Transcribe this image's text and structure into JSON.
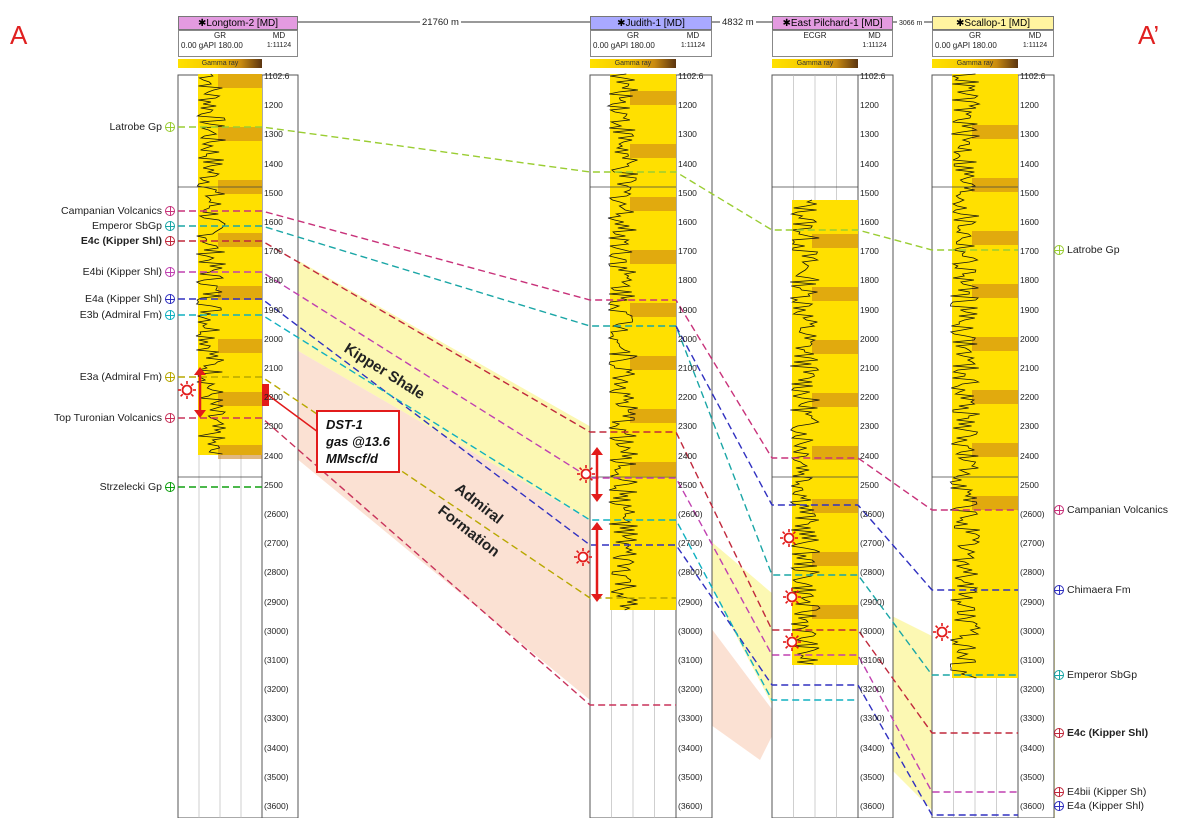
{
  "corners": {
    "left": "A",
    "right": "A’"
  },
  "spacings": [
    "21760 m",
    "4832 m",
    "3066 m"
  ],
  "wells": [
    {
      "name": "Longtom-2",
      "md_tag": "[MD]",
      "track1": "GR",
      "track2": "MD",
      "scale_min": "0.00",
      "unit": "gAPI",
      "scale_max": "180.00",
      "ratio": "1:11124",
      "bar_label": "Gamma ray",
      "title_color": "#e39be0"
    },
    {
      "name": "Judith-1",
      "md_tag": "[MD]",
      "track1": "GR",
      "track2": "MD",
      "scale_min": "0.00",
      "unit": "gAPI",
      "scale_max": "180.00",
      "ratio": "1:11124",
      "bar_label": "Gamma ray",
      "title_color": "#a9a9ff"
    },
    {
      "name": "East Pilchard-1",
      "md_tag": "[MD]",
      "track1": "ECGR",
      "track2": "MD",
      "scale_min": "",
      "unit": "",
      "scale_max": "",
      "ratio": "1:11124",
      "bar_label": "Gamma ray",
      "title_color": "#e39be0"
    },
    {
      "name": "Scallop-1",
      "md_tag": "[MD]",
      "track1": "GR",
      "track2": "MD",
      "scale_min": "0.00",
      "unit": "gAPI",
      "scale_max": "180.00",
      "ratio": "1:11124",
      "bar_label": "Gamma ray",
      "title_color": "#fff4a0"
    }
  ],
  "depth_ticks": [
    "1102.6",
    "1200",
    "1300",
    "1400",
    "1500",
    "1600",
    "1700",
    "1800",
    "1900",
    "2000",
    "2100",
    "2200",
    "2300",
    "2400",
    "2500",
    "(2600)",
    "(2700)",
    "(2800)",
    "(2900)",
    "(3000)",
    "(3100)",
    "(3200)",
    "(3300)",
    "(3400)",
    "(3500)",
    "(3600)"
  ],
  "left_horizons": [
    {
      "label": "Latrobe Gp",
      "color": "#9acd32",
      "bold": false
    },
    {
      "label": "Campanian Volcanics",
      "color": "#c8327a",
      "bold": false
    },
    {
      "label": "Emperor SbGp",
      "color": "#1aa6a6",
      "bold": false
    },
    {
      "label": "E4c (Kipper Shl)",
      "color": "#c0283c",
      "bold": true
    },
    {
      "label": "E4bi (Kipper Shl)",
      "color": "#c040b0",
      "bold": false
    },
    {
      "label": "E4a (Kipper Shl)",
      "color": "#3030c0",
      "bold": false
    },
    {
      "label": "E3b (Admiral Fm)",
      "color": "#10b0c0",
      "bold": false
    },
    {
      "label": "E3a (Admiral Fm)",
      "color": "#b8a800",
      "bold": false
    },
    {
      "label": "Top Turonian Volcanics",
      "color": "#c8325a",
      "bold": false
    },
    {
      "label": "Strzelecki Gp",
      "color": "#10a010",
      "bold": false
    }
  ],
  "right_horizons": [
    {
      "label": "Latrobe Gp",
      "color": "#9acd32",
      "bold": false
    },
    {
      "label": "Campanian Volcanics",
      "color": "#c8327a",
      "bold": false
    },
    {
      "label": "Chimaera Fm",
      "color": "#3030c0",
      "bold": false
    },
    {
      "label": "Emperor SbGp",
      "color": "#1aa6a6",
      "bold": false
    },
    {
      "label": "E4c (Kipper Shl)",
      "color": "#c0283c",
      "bold": true
    },
    {
      "label": "E4bii (Kipper Sh)",
      "color": "#c0283c",
      "bold": false
    },
    {
      "label": "E4a (Kipper Shl)",
      "color": "#3030c0",
      "bold": false
    }
  ],
  "zones": {
    "upper": "Kipper Shale",
    "lower_line1": "Admiral",
    "lower_line2": "Formation"
  },
  "dst": {
    "line1": "DST-1",
    "line2": "gas @13.6",
    "line3": "MMscf/d"
  },
  "colors": {
    "red": "#e21b1b",
    "yellow": "#ffe000",
    "shale_fill": "#fbf7a6",
    "admiral_fill": "#f9d7c4"
  }
}
